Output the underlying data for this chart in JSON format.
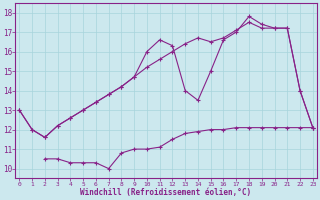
{
  "bg_color": "#cce8ee",
  "line_color": "#882288",
  "grid_color": "#a8d4dc",
  "xlabel": "Windchill (Refroidissement éolien,°C)",
  "xlabel_color": "#882288",
  "xticks": [
    0,
    1,
    2,
    3,
    4,
    5,
    6,
    7,
    8,
    9,
    10,
    11,
    12,
    13,
    14,
    15,
    16,
    17,
    18,
    19,
    20,
    21,
    22,
    23
  ],
  "yticks": [
    10,
    11,
    12,
    13,
    14,
    15,
    16,
    17,
    18
  ],
  "ylim": [
    9.5,
    18.5
  ],
  "xlim": [
    -0.3,
    23.3
  ],
  "line1_x": [
    0,
    1,
    2,
    3,
    4,
    5,
    6,
    7,
    8,
    9,
    10,
    11,
    12,
    13,
    14,
    15,
    16,
    17,
    18,
    19,
    20,
    21,
    22,
    23
  ],
  "line1_y": [
    13,
    12,
    11.6,
    12.2,
    12.6,
    13.0,
    13.4,
    13.8,
    14.2,
    14.7,
    15.2,
    15.6,
    16.0,
    16.4,
    16.7,
    16.5,
    16.7,
    17.1,
    17.5,
    17.2,
    17.2,
    17.2,
    14.0,
    12.1
  ],
  "line2_x": [
    0,
    1,
    2,
    3,
    4,
    5,
    6,
    7,
    8,
    9,
    10,
    11,
    12,
    13,
    14,
    15,
    16,
    17,
    18,
    19,
    20,
    21,
    22,
    23
  ],
  "line2_y": [
    13,
    12,
    11.6,
    12.2,
    12.6,
    13.0,
    13.4,
    13.8,
    14.2,
    14.7,
    16.0,
    16.6,
    16.3,
    14.0,
    13.5,
    15.0,
    16.6,
    17.0,
    17.8,
    17.4,
    17.2,
    17.2,
    14.0,
    12.1
  ],
  "line3_x": [
    2,
    3,
    4,
    5,
    6,
    7,
    8,
    9,
    10,
    11,
    12,
    13,
    14,
    15,
    16,
    17,
    18,
    19,
    20,
    21,
    22,
    23
  ],
  "line3_y": [
    10.5,
    10.5,
    10.3,
    10.3,
    10.3,
    10.0,
    10.8,
    11.0,
    11.0,
    11.1,
    11.5,
    11.8,
    11.9,
    12.0,
    12.0,
    12.1,
    12.1,
    12.1,
    12.1,
    12.1,
    12.1,
    12.1
  ],
  "figsize": [
    3.2,
    2.0
  ],
  "dpi": 100
}
